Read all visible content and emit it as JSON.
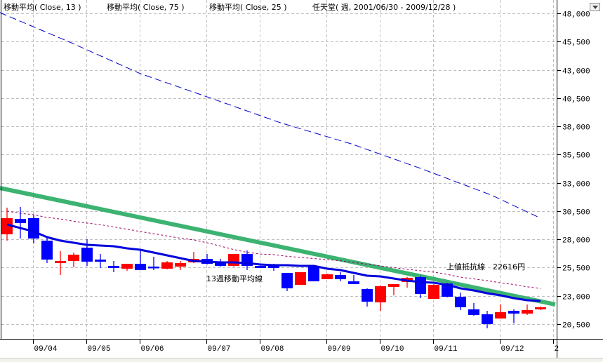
{
  "header": {
    "legend_ma13": "移動平均( Close, 13 )",
    "legend_ma75": "移動平均( Close, 75 )",
    "legend_ma25": "移動平均( Close, 25 )",
    "series_title": "任天堂( 週, 2001/06/30 - 2009/12/28 )"
  },
  "annotations": {
    "ma13_label": "13週移動平均線",
    "resistance_label": "上値抵抗線　22616円"
  },
  "colors": {
    "up": "#ff0000",
    "down": "#0000ff",
    "ma13": "#0000dd",
    "ma25": "#990066",
    "ma75": "#0000cc",
    "trendline": "#3cb371",
    "grid": "#c0c0c0"
  },
  "chart_data": {
    "type": "candlestick",
    "title": "任天堂( 週, 2001/06/30 - 2009/12/28 )",
    "ylim": [
      19500,
      48500
    ],
    "y_ticks": [
      48000,
      45500,
      43000,
      40500,
      38000,
      35500,
      33000,
      30500,
      28000,
      25500,
      23000,
      20500
    ],
    "y_tick_labels": [
      "48,000",
      "45,500",
      "43,000",
      "40,500",
      "38,000",
      "35,500",
      "33,000",
      "30,500",
      "28,000",
      "25,500",
      "23,000",
      "20,500"
    ],
    "x_ticks": [
      {
        "index": 3,
        "label": "09/04"
      },
      {
        "index": 7,
        "label": "09/05"
      },
      {
        "index": 11,
        "label": "09/06"
      },
      {
        "index": 16,
        "label": "09/07"
      },
      {
        "index": 20,
        "label": "09/08"
      },
      {
        "index": 25,
        "label": "09/09"
      },
      {
        "index": 29,
        "label": "09/10"
      },
      {
        "index": 33,
        "label": "09/11"
      },
      {
        "index": 38,
        "label": "09/12"
      },
      {
        "index": 42,
        "label": "2"
      }
    ],
    "grid": true,
    "ohlc": [
      [
        28445,
        30804,
        27886,
        29873
      ],
      [
        29811,
        30866,
        28072,
        29438
      ],
      [
        29873,
        30183,
        27638,
        28072
      ],
      [
        27886,
        28196,
        25900,
        26210
      ],
      [
        25900,
        26955,
        24844,
        26086
      ],
      [
        26086,
        26831,
        25527,
        26645
      ],
      [
        27265,
        28010,
        25651,
        26024
      ],
      [
        26210,
        26707,
        25465,
        26024
      ],
      [
        25651,
        26086,
        25092,
        25465
      ],
      [
        25403,
        25837,
        25217,
        25837
      ],
      [
        25837,
        27017,
        25279,
        25279
      ],
      [
        25589,
        26458,
        25279,
        25465
      ],
      [
        25403,
        26086,
        25341,
        25962
      ],
      [
        25589,
        26086,
        25279,
        25900
      ],
      [
        25962,
        26893,
        25900,
        26272
      ],
      [
        26272,
        26707,
        25775,
        25837
      ],
      [
        25962,
        26272,
        25589,
        25651
      ],
      [
        25651,
        26707,
        25589,
        26707
      ],
      [
        26707,
        27017,
        25279,
        25651
      ],
      [
        25651,
        25775,
        25465,
        25465
      ],
      [
        25775,
        25837,
        25217,
        25465
      ],
      [
        25030,
        25030,
        23416,
        23665
      ],
      [
        23975,
        25092,
        23975,
        25092
      ],
      [
        25589,
        25651,
        24285,
        24285
      ],
      [
        24472,
        24968,
        24472,
        24906
      ],
      [
        24844,
        25092,
        24285,
        24472
      ],
      [
        24285,
        24844,
        24037,
        24037
      ],
      [
        23603,
        23665,
        22051,
        22485
      ],
      [
        22423,
        23913,
        21678,
        23851
      ],
      [
        23789,
        24037,
        23044,
        24037
      ],
      [
        24223,
        24658,
        23727,
        24596
      ],
      [
        24658,
        24782,
        22796,
        23168
      ],
      [
        22733,
        24037,
        22733,
        23975
      ],
      [
        24099,
        24158,
        22858,
        22920
      ],
      [
        22920,
        23292,
        21740,
        21988
      ],
      [
        21802,
        22361,
        21244,
        21306
      ],
      [
        21368,
        21678,
        20126,
        20499
      ],
      [
        20995,
        22237,
        20995,
        21554
      ],
      [
        21678,
        21802,
        20561,
        21430
      ],
      [
        21430,
        22237,
        21306,
        21740
      ],
      [
        21802,
        22051,
        21740,
        21988
      ]
    ],
    "series": [
      {
        "name": "移動平均( Close, 13 )",
        "values": [
          29314,
          29000,
          28693,
          28196,
          27886,
          27700,
          27514,
          27452,
          27390,
          27204,
          27080,
          26831,
          26583,
          26334,
          26086,
          26024,
          25962,
          25962,
          25900,
          25775,
          25713,
          25713,
          25651,
          25651,
          25403,
          25279,
          25030,
          24782,
          24720,
          24534,
          24348,
          24223,
          24161,
          23975,
          23665,
          23479,
          23230,
          23044,
          22796,
          22609,
          22547
        ]
      },
      {
        "name": "移動平均( Close, 25 )",
        "values": [
          30500,
          30300,
          30183,
          29935,
          29800,
          29600,
          29440,
          29300,
          29100,
          28900,
          28690,
          28500,
          28300,
          28100,
          27950,
          27700,
          27400,
          27100,
          26850,
          26700,
          26650,
          26500,
          26400,
          26300,
          26210,
          26100,
          25950,
          25800,
          25650,
          25500,
          25350,
          25220,
          25100,
          24900,
          24650,
          24500,
          24350,
          24150,
          24000,
          23800,
          23650
        ]
      },
      {
        "name": "移動平均( Close, 75 )",
        "points": [
          [
            0.47,
            48062
          ],
          [
            5.7,
            45455
          ],
          [
            11,
            42661
          ],
          [
            16.3,
            40488
          ],
          [
            21.5,
            38316
          ],
          [
            26.8,
            36453
          ],
          [
            32,
            34280
          ],
          [
            37.3,
            31922
          ],
          [
            41,
            29873
          ]
        ]
      }
    ],
    "trendline": {
      "name": "上値抵抗線",
      "value_label": "22616円",
      "points": [
        [
          0.47,
          32542
        ],
        [
          42.1,
          22237
        ]
      ]
    }
  }
}
